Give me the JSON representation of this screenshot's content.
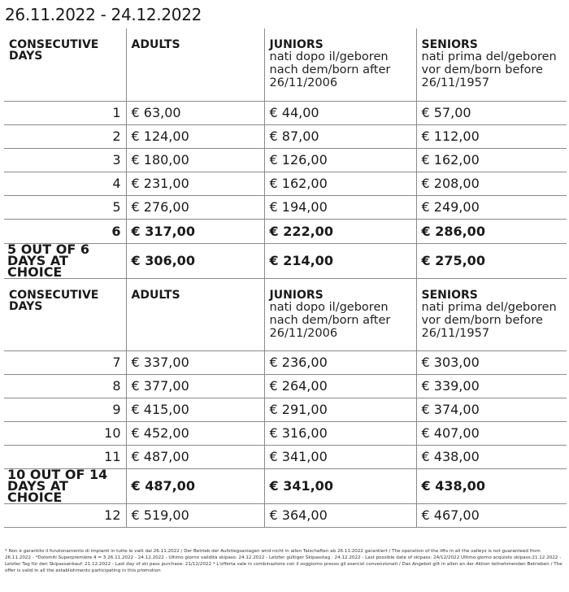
{
  "title": "26.11.2022 - 24.12.2022",
  "headers": {
    "days": "CONSECUTIVE DAYS",
    "adults": "ADULTS",
    "juniors": "JUNIORS",
    "juniors_sub": "nati dopo il/geboren nach dem/born after 26/11/2006",
    "seniors": "SENIORS",
    "seniors_sub": "nati prima del/geboren vor dem/born before 26/11/1957"
  },
  "rows": [
    {
      "type": "price",
      "day": "1",
      "adults": "€  63,00",
      "juniors": "€  44,00",
      "seniors": "€  57,00"
    },
    {
      "type": "price",
      "day": "2",
      "adults": "€  124,00",
      "juniors": "€  87,00",
      "seniors": "€  112,00"
    },
    {
      "type": "price",
      "day": "3",
      "adults": "€  180,00",
      "juniors": "€  126,00",
      "seniors": "€  162,00"
    },
    {
      "type": "price",
      "day": "4",
      "adults": "€  231,00",
      "juniors": "€  162,00",
      "seniors": "€  208,00"
    },
    {
      "type": "price",
      "day": "5",
      "adults": "€  276,00",
      "juniors": "€  194,00",
      "seniors": "€  249,00"
    },
    {
      "type": "bold",
      "day": "6",
      "adults": "€  317,00",
      "juniors": "€  222,00",
      "seniors": "€  286,00"
    },
    {
      "type": "choice",
      "day": "5 OUT OF 6 DAYS AT CHOICE",
      "adults": "€  306,00",
      "juniors": "€ 214,00",
      "seniors": "€  275,00"
    },
    {
      "type": "header"
    },
    {
      "type": "price",
      "day": "7",
      "adults": "€  337,00",
      "juniors": "€  236,00",
      "seniors": "€  303,00"
    },
    {
      "type": "price",
      "day": "8",
      "adults": "€  377,00",
      "juniors": "€  264,00",
      "seniors": "€  339,00"
    },
    {
      "type": "price",
      "day": "9",
      "adults": "€  415,00",
      "juniors": "€  291,00",
      "seniors": "€  374,00"
    },
    {
      "type": "price",
      "day": "10",
      "adults": "€  452,00",
      "juniors": "€  316,00",
      "seniors": "€  407,00"
    },
    {
      "type": "price",
      "day": "11",
      "adults": "€  487,00",
      "juniors": "€  341,00",
      "seniors": "€  438,00"
    },
    {
      "type": "choice",
      "day": "10 OUT OF 14 DAYS AT CHOICE",
      "adults": "€  487,00",
      "juniors": "€  341,00",
      "seniors": "€  438,00"
    },
    {
      "type": "price",
      "day": "12",
      "adults": "€  519,00",
      "juniors": "€  364,00",
      "seniors": "€  467,00"
    }
  ],
  "footnote": "* Non è garantito il funzionamento di impianti in tutte le valli dal 26.11.2022 / Der Betrieb der Aufstiegsanlagen wird nicht in allen Talschaften ab 26.11.2022 garantiert / The operation of the lifts in all the valleys is not guaranteed from 26.11.2022 - *Dolomiti Superpremière 4 = 3  26.11.2022 - 24.12.2022 - Ultimo giorno validità skipass: 24.12.2022 - Letzter gültiger Skipasstag : 24.12.2022 - Last possible date of skipass: 24/12/2022 Ultimo giorno acquisto skipass:21.12.2022 - Letzter Tag für den Skipassankauf: 21.12.2022 - Last day of ski pass purchase: 21/12/2022  * L'offerta vale in combinazione con il soggiorno presso gli esercizi convenzionati / Das Angebot gilt in allen an der Aktion teilnehmenden Betrieben / The offer is valid in all the establishments participating in this promotion"
}
